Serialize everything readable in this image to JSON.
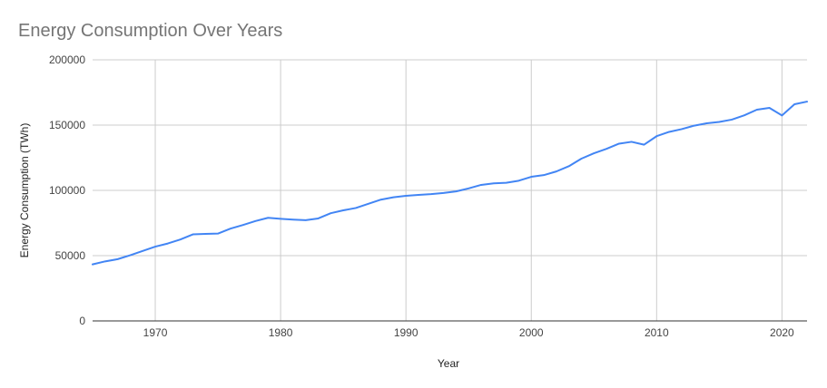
{
  "chart_data": {
    "type": "line",
    "title": "Energy Consumption Over Years",
    "xlabel": "Year",
    "ylabel": "Energy Consumption (TWh)",
    "xlim": [
      1965,
      2022
    ],
    "ylim": [
      0,
      200000
    ],
    "x_ticks": [
      1970,
      1980,
      1990,
      2000,
      2010,
      2020
    ],
    "x_tick_labels": [
      "1970",
      "1980",
      "1990",
      "2000",
      "2010",
      "2020"
    ],
    "y_ticks": [
      0,
      50000,
      100000,
      150000,
      200000
    ],
    "y_tick_labels": [
      "0",
      "50000",
      "100000",
      "150000",
      "200000"
    ],
    "grid": true,
    "legend": "none",
    "series": [
      {
        "color": "#4285f4",
        "x": [
          1965,
          1966,
          1967,
          1968,
          1969,
          1970,
          1971,
          1972,
          1973,
          1974,
          1975,
          1976,
          1977,
          1978,
          1979,
          1980,
          1981,
          1982,
          1983,
          1984,
          1985,
          1986,
          1987,
          1988,
          1989,
          1990,
          1991,
          1992,
          1993,
          1994,
          1995,
          1996,
          1997,
          1998,
          1999,
          2000,
          2001,
          2002,
          2003,
          2004,
          2005,
          2006,
          2007,
          2008,
          2009,
          2010,
          2011,
          2012,
          2013,
          2014,
          2015,
          2016,
          2017,
          2018,
          2019,
          2020,
          2021,
          2022
        ],
        "values": [
          43300,
          45600,
          47300,
          50300,
          53600,
          56900,
          59300,
          62400,
          66300,
          66700,
          66900,
          70700,
          73500,
          76500,
          79000,
          78200,
          77600,
          77200,
          78500,
          82500,
          84700,
          86500,
          89700,
          92900,
          94700,
          95800,
          96500,
          97100,
          98000,
          99200,
          101500,
          104200,
          105400,
          105800,
          107400,
          110400,
          111700,
          114500,
          118500,
          124300,
          128400,
          131800,
          135800,
          137200,
          135000,
          141500,
          144800,
          146900,
          149600,
          151400,
          152400,
          154200,
          157500,
          161800,
          163200,
          157400,
          166000,
          168000
        ]
      }
    ]
  }
}
